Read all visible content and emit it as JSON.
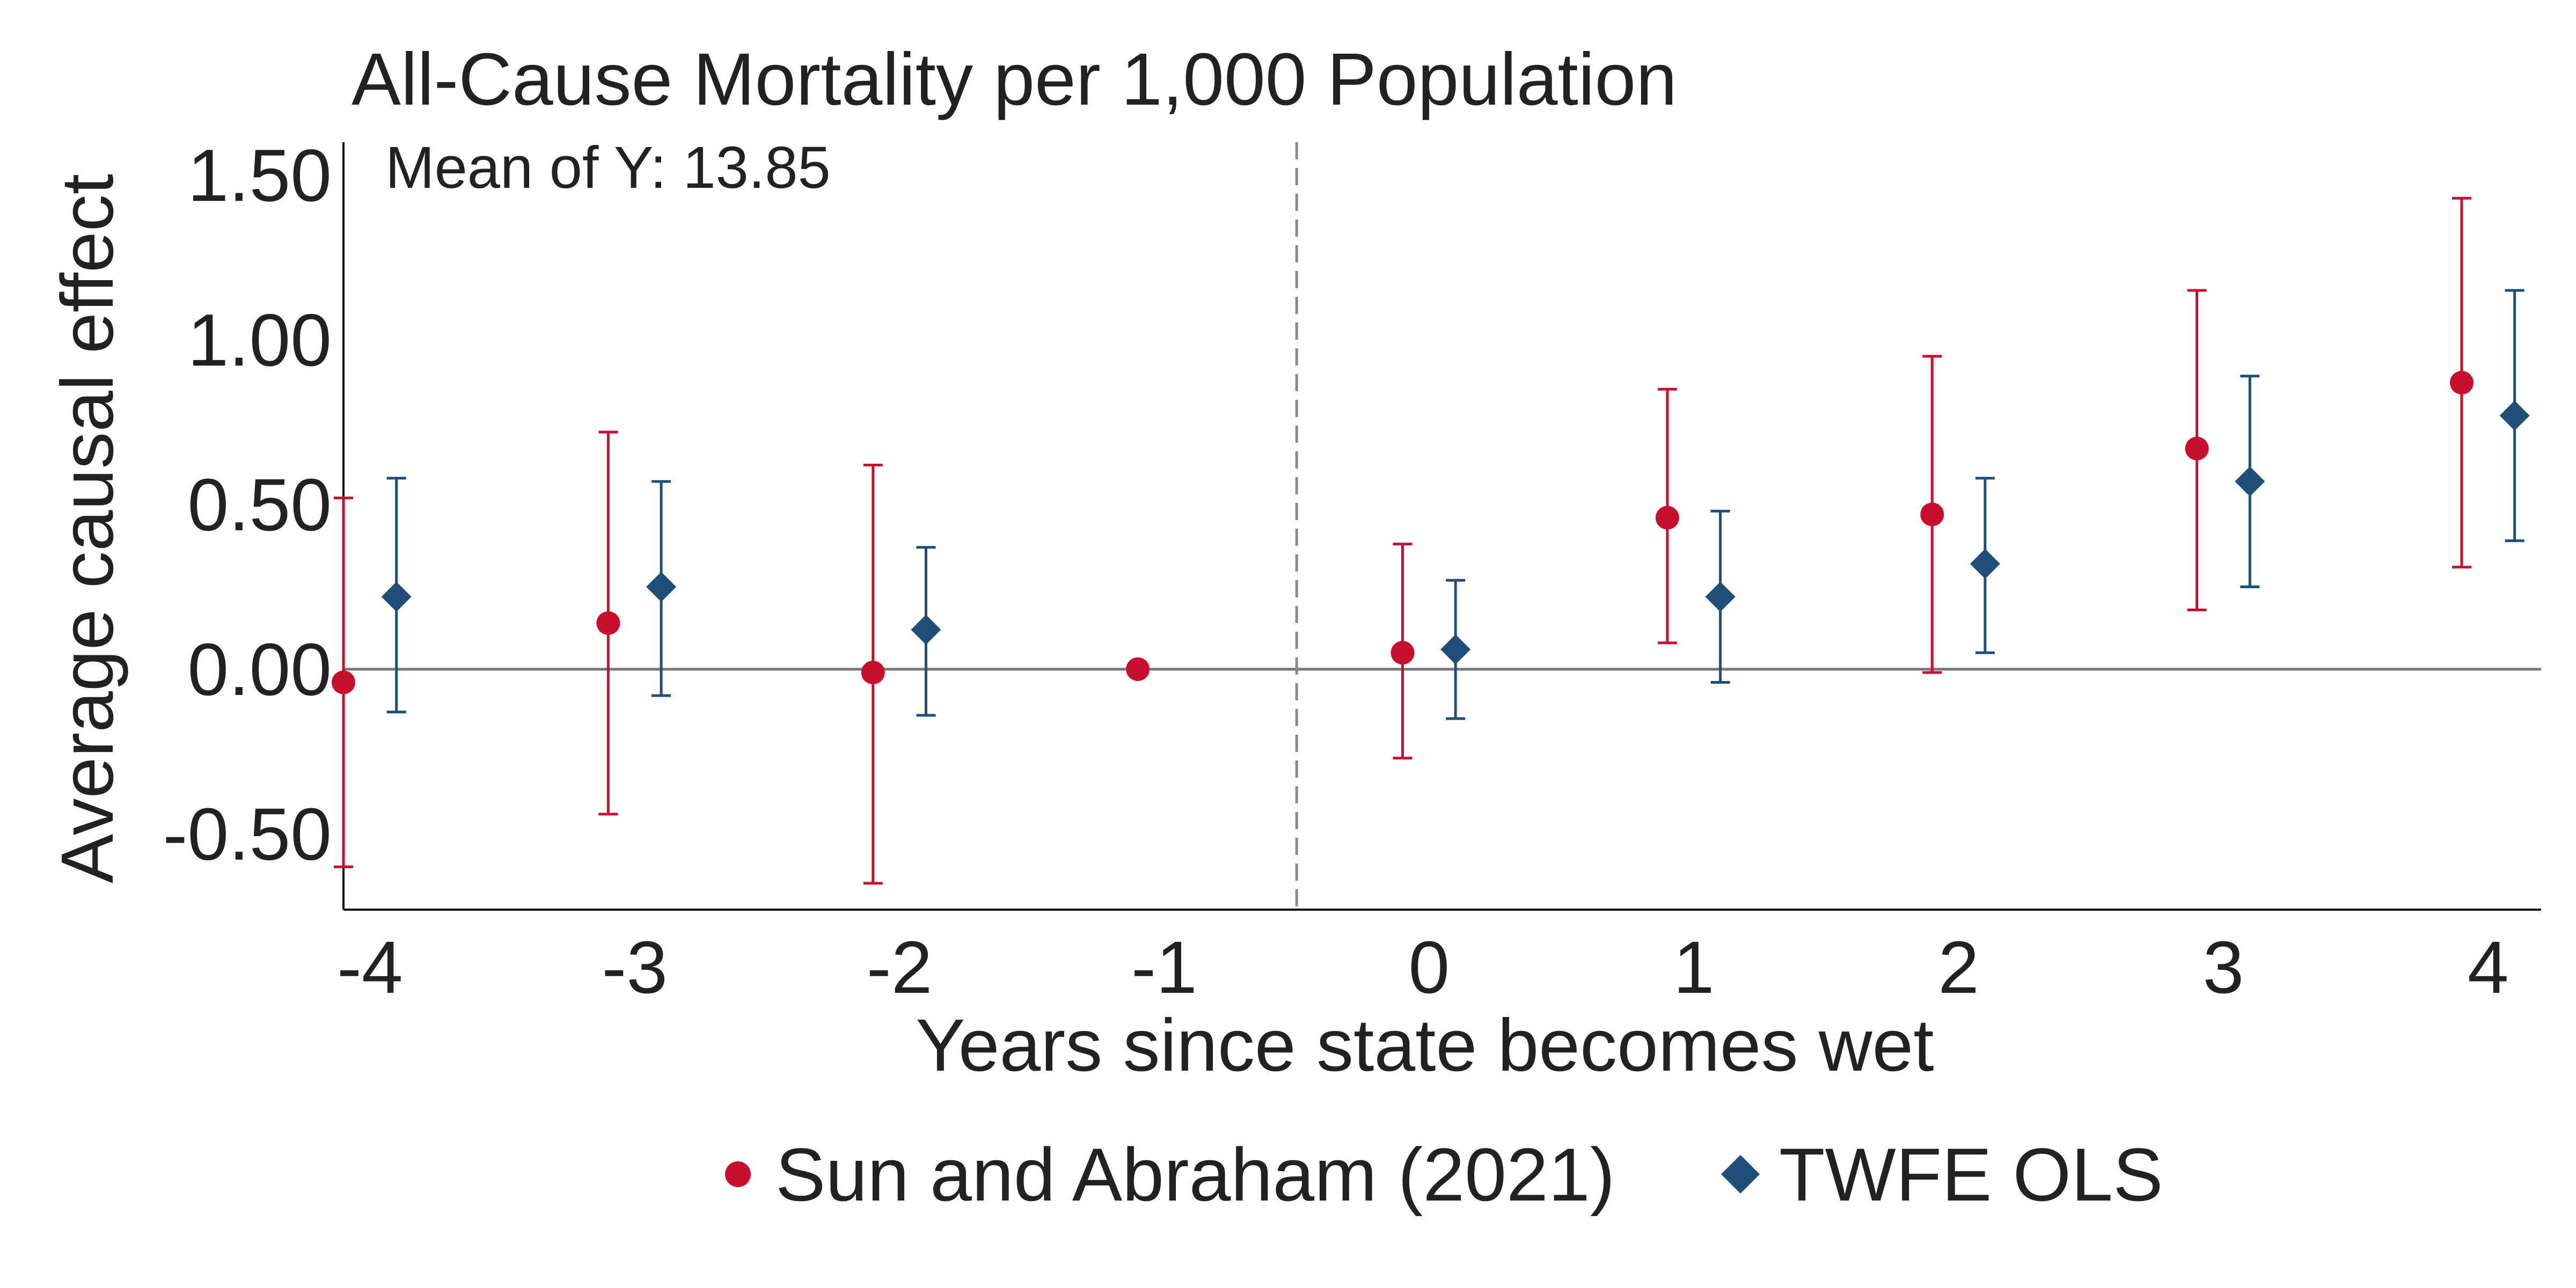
{
  "chart_data": {
    "type": "scatter",
    "title": "All-Cause Mortality per 1,000 Population",
    "annotation": "Mean of Y: 13.85",
    "xlabel": "Years since state becomes wet",
    "ylabel": "Average causal effect",
    "x_ticks": [
      "-4",
      "-3",
      "-2",
      "-1",
      "0",
      "1",
      "2",
      "3",
      "4"
    ],
    "y_ticks": [
      "1.50",
      "1.00",
      "0.50",
      "0.00",
      "-0.50"
    ],
    "y_tick_values": [
      1.5,
      1.0,
      0.5,
      0.0,
      -0.5
    ],
    "xlim": [
      -4.1,
      4.2
    ],
    "ylim": [
      -0.73,
      1.6
    ],
    "reference_line_y": 0,
    "treatment_line_x": -0.5,
    "grid": false,
    "legend_position": "bottom",
    "series": [
      {
        "name": "Sun and Abraham (2021)",
        "marker": "circle",
        "color": "#C8102E",
        "offset": -0.1,
        "points": [
          {
            "x": -4,
            "y": -0.04,
            "lo": -0.6,
            "hi": 0.52
          },
          {
            "x": -3,
            "y": 0.14,
            "lo": -0.44,
            "hi": 0.72
          },
          {
            "x": -2,
            "y": -0.01,
            "lo": -0.65,
            "hi": 0.62
          },
          {
            "x": -1,
            "y": 0.0,
            "lo": null,
            "hi": null
          },
          {
            "x": 0,
            "y": 0.05,
            "lo": -0.27,
            "hi": 0.38
          },
          {
            "x": 1,
            "y": 0.46,
            "lo": 0.08,
            "hi": 0.85
          },
          {
            "x": 2,
            "y": 0.47,
            "lo": -0.01,
            "hi": 0.95
          },
          {
            "x": 3,
            "y": 0.67,
            "lo": 0.18,
            "hi": 1.15
          },
          {
            "x": 4,
            "y": 0.87,
            "lo": 0.31,
            "hi": 1.43
          }
        ]
      },
      {
        "name": "TWFE OLS",
        "marker": "diamond",
        "color": "#1F4E79",
        "offset": 0.1,
        "points": [
          {
            "x": -4,
            "y": 0.22,
            "lo": -0.13,
            "hi": 0.58
          },
          {
            "x": -3,
            "y": 0.25,
            "lo": -0.08,
            "hi": 0.57
          },
          {
            "x": -2,
            "y": 0.12,
            "lo": -0.14,
            "hi": 0.37
          },
          {
            "x": 0,
            "y": 0.06,
            "lo": -0.15,
            "hi": 0.27
          },
          {
            "x": 1,
            "y": 0.22,
            "lo": -0.04,
            "hi": 0.48
          },
          {
            "x": 2,
            "y": 0.32,
            "lo": 0.05,
            "hi": 0.58
          },
          {
            "x": 3,
            "y": 0.57,
            "lo": 0.25,
            "hi": 0.89
          },
          {
            "x": 4,
            "y": 0.77,
            "lo": 0.39,
            "hi": 1.15
          }
        ]
      }
    ]
  }
}
